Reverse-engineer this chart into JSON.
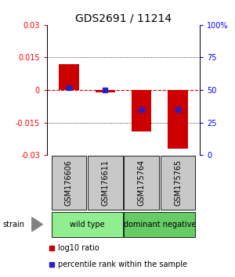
{
  "title": "GDS2691 / 11214",
  "samples": [
    "GSM176606",
    "GSM176611",
    "GSM175764",
    "GSM175765"
  ],
  "log10_ratio": [
    0.012,
    -0.001,
    -0.019,
    -0.027
  ],
  "percentile_rank": [
    52,
    50,
    35,
    35
  ],
  "ylim": [
    -0.03,
    0.03
  ],
  "yticks_left": [
    -0.03,
    -0.015,
    0,
    0.015,
    0.03
  ],
  "yticks_right_labels": [
    "0",
    "25",
    "50",
    "75",
    "100%"
  ],
  "groups": [
    {
      "label": "wild type",
      "color": "#90ee90",
      "samples": [
        0,
        1
      ]
    },
    {
      "label": "dominant negative",
      "color": "#66cc66",
      "samples": [
        2,
        3
      ]
    }
  ],
  "bar_color": "#cc0000",
  "dot_color": "#2222cc",
  "bar_width": 0.55,
  "hline_color": "#cc0000",
  "title_fontsize": 10,
  "tick_fontsize": 7,
  "sample_box_color": "#c8c8c8",
  "legend_fontsize": 7
}
